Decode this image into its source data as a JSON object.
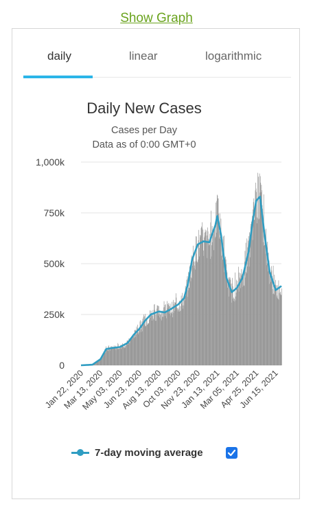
{
  "link": {
    "show_graph": "Show Graph"
  },
  "tabs": [
    {
      "label": "daily",
      "active": true
    },
    {
      "label": "linear",
      "active": false
    },
    {
      "label": "logarithmic",
      "active": false
    }
  ],
  "legend": {
    "label": "7-day moving average",
    "checked": true
  },
  "colors": {
    "bars": "#999999",
    "line": "#2f9dc2",
    "tab_underline": "#2bb5e8",
    "link": "#6aa31e",
    "checkbox": "#1a73e8"
  },
  "chart_data": {
    "type": "bar",
    "title": "Daily New Cases",
    "subtitle": "Cases per Day",
    "subtitle2": "Data as of 0:00 GMT+0",
    "xlabel": "",
    "ylabel": "",
    "ylim": [
      0,
      1000000
    ],
    "y_ticks": [
      0,
      250000,
      500000,
      750000,
      1000000
    ],
    "y_tick_labels": [
      "0",
      "250k",
      "500k",
      "750k",
      "1,000k"
    ],
    "x_tick_labels": [
      "Jan 22, 2020",
      "Mar 13, 2020",
      "May 03, 2020",
      "Jun 23, 2020",
      "Aug 13, 2020",
      "Oct 03, 2020",
      "Nov 23, 2020",
      "Jan 13, 2021",
      "Mar 05, 2021",
      "Apr 25, 2021",
      "Jun 15, 2021"
    ],
    "grid": true,
    "legend_position": "bottom",
    "series": [
      {
        "name": "7-day moving average",
        "type": "line",
        "x": [
          "Jan 22, 2020",
          "Feb 21, 2020",
          "Mar 13, 2020",
          "Mar 28, 2020",
          "Apr 12, 2020",
          "May 03, 2020",
          "May 23, 2020",
          "Jun 08, 2020",
          "Jun 23, 2020",
          "Jul 08, 2020",
          "Jul 23, 2020",
          "Aug 13, 2020",
          "Aug 28, 2020",
          "Sep 12, 2020",
          "Oct 03, 2020",
          "Oct 18, 2020",
          "Oct 28, 2020",
          "Nov 08, 2020",
          "Nov 23, 2020",
          "Dec 08, 2020",
          "Dec 23, 2020",
          "Jan 08, 2021",
          "Jan 13, 2021",
          "Jan 23, 2021",
          "Feb 06, 2021",
          "Feb 20, 2021",
          "Mar 05, 2021",
          "Mar 20, 2021",
          "Apr 05, 2021",
          "Apr 15, 2021",
          "Apr 25, 2021",
          "May 05, 2021",
          "May 15, 2021",
          "May 30, 2021",
          "Jun 15, 2021",
          "Jun 30, 2021"
        ],
        "values": [
          0,
          3000,
          30000,
          80000,
          85000,
          90000,
          110000,
          150000,
          180000,
          220000,
          250000,
          265000,
          260000,
          275000,
          300000,
          330000,
          400000,
          520000,
          595000,
          610000,
          605000,
          690000,
          735000,
          640000,
          430000,
          360000,
          380000,
          430000,
          560000,
          700000,
          810000,
          830000,
          670000,
          460000,
          370000,
          390000
        ]
      }
    ],
    "bars": {
      "x_range": [
        "Jan 22, 2020",
        "Jun 30, 2021"
      ],
      "peaks": [
        [
          "Jan 13, 2021",
          840000
        ],
        [
          "May 05, 2021",
          900000
        ]
      ],
      "note_values": "daily bars follow the moving average with daily noise"
    }
  }
}
